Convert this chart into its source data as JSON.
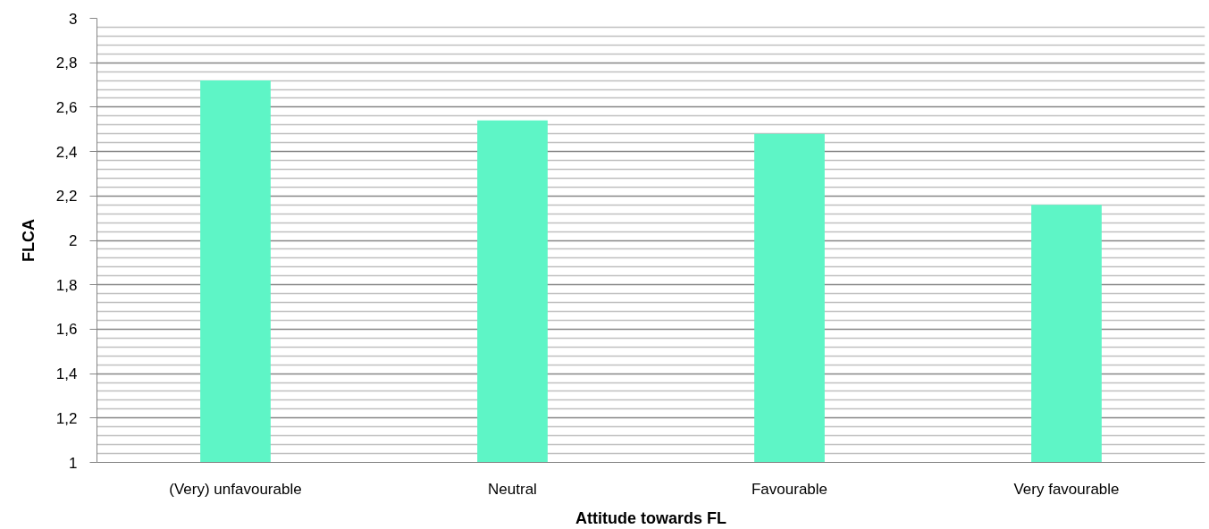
{
  "chart_data": {
    "type": "bar",
    "xlabel": "Attitude towards FL",
    "ylabel": "FLCA",
    "categories": [
      "(Very) unfavourable",
      "Neutral",
      "Favourable",
      "Very favourable"
    ],
    "values": [
      2.72,
      2.54,
      2.48,
      2.16
    ],
    "color": "#5ef5c6",
    "ylim": [
      1,
      3
    ],
    "yticks": [
      1,
      {
        "value": 1.2,
        "label": "1,2"
      },
      {
        "value": 1.4,
        "label": "1,4"
      },
      {
        "value": 1.6,
        "label": "1,6"
      },
      {
        "value": 1.8,
        "label": "1,8"
      },
      2,
      {
        "value": 2.2,
        "label": "2,2"
      },
      {
        "value": 2.4,
        "label": "2,4"
      },
      {
        "value": 2.6,
        "label": "2,6"
      },
      {
        "value": 2.8,
        "label": "2,8"
      },
      3
    ],
    "grid": "y"
  }
}
